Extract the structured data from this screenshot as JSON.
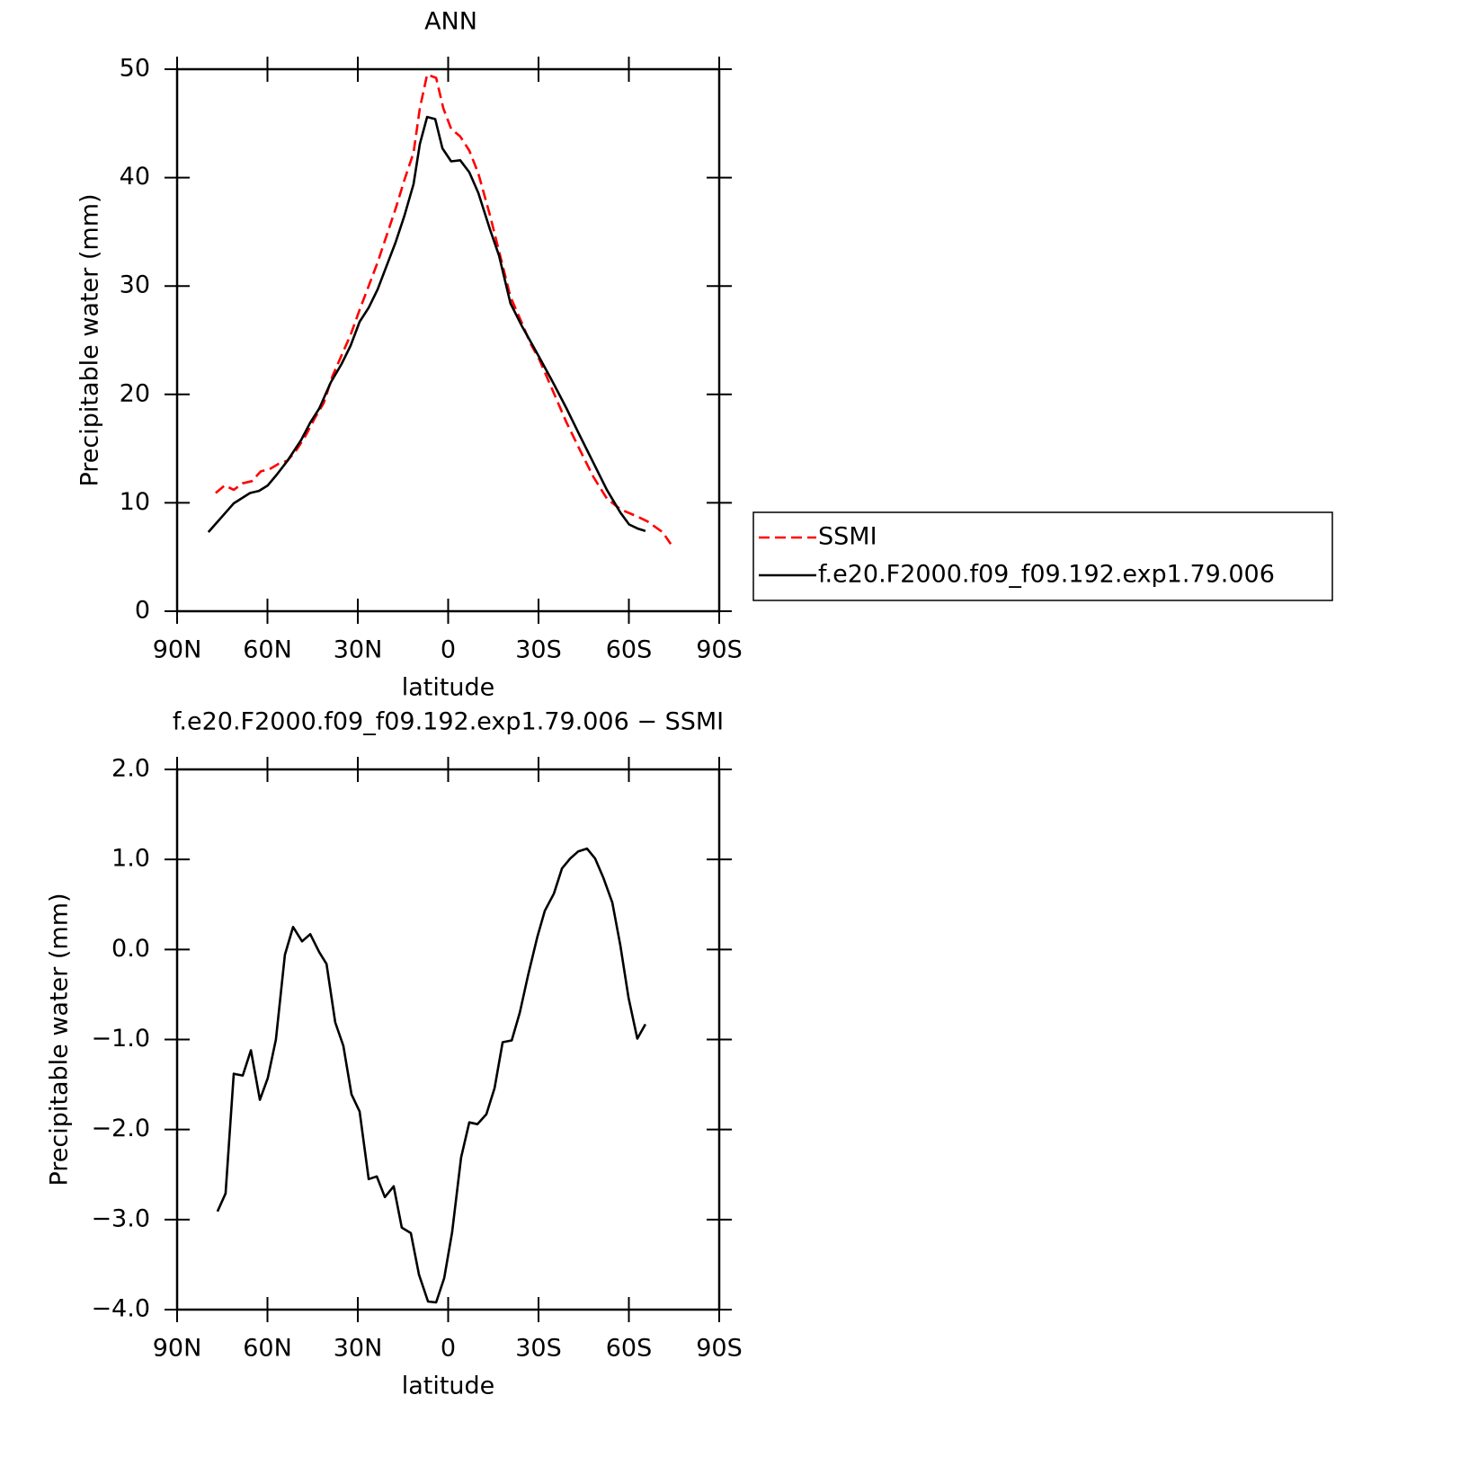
{
  "chart_data": [
    {
      "type": "line",
      "title": "ANN",
      "xlabel": "latitude",
      "ylabel": "Precipitable water (mm)",
      "xlim": [
        90,
        -90
      ],
      "xticks": [
        {
          "value": 90,
          "label": "90N"
        },
        {
          "value": 60,
          "label": "60N"
        },
        {
          "value": 30,
          "label": "30N"
        },
        0,
        {
          "value": -30,
          "label": "30S"
        },
        {
          "value": -60,
          "label": "60S"
        },
        {
          "value": -90,
          "label": "90S"
        }
      ],
      "ylim": [
        0,
        50
      ],
      "yticks": [
        0,
        10,
        20,
        30,
        40,
        50
      ],
      "legend": "right",
      "series": [
        {
          "name": "SSMI",
          "color": "#ff0000",
          "dash": true,
          "x": [
            77.2,
            74.2,
            71.2,
            68.2,
            65.2,
            62.2,
            59.3,
            56.3,
            53.3,
            50.3,
            47.3,
            44.3,
            41.3,
            38.4,
            35.4,
            32.4,
            29.4,
            26.4,
            23.4,
            20.4,
            17.5,
            14.5,
            11.5,
            9.4,
            7.0,
            4.0,
            1.6,
            -1.0,
            -4.0,
            -7.0,
            -10.0,
            -13.9,
            -16.9,
            -20.7,
            -24.3,
            -27.3,
            -30.3,
            -34.8,
            -39.3,
            -43.7,
            -48.2,
            -52.7,
            -57.2,
            -63.1,
            -66.1,
            -71.2,
            -73.9
          ],
          "values": [
            10.9,
            11.6,
            11.2,
            11.8,
            12.0,
            12.9,
            13.1,
            13.6,
            13.9,
            14.9,
            16.2,
            17.8,
            19.2,
            21.7,
            23.6,
            25.5,
            27.8,
            30.0,
            32.2,
            34.7,
            37.1,
            39.8,
            42.3,
            46.4,
            49.5,
            49.2,
            46.4,
            44.5,
            43.8,
            42.5,
            40.4,
            36.5,
            33.2,
            29.0,
            26.7,
            24.7,
            23.2,
            20.3,
            17.4,
            14.9,
            12.4,
            10.4,
            9.4,
            8.7,
            8.3,
            7.3,
            6.2
          ]
        },
        {
          "name": "f.e20.F2000.f09_f09.192.exp1.79.006",
          "color": "#000000",
          "dash": false,
          "x": [
            79.6,
            71.2,
            65.8,
            62.8,
            59.9,
            56.9,
            53.3,
            48.8,
            45.8,
            42.8,
            39.0,
            35.4,
            32.4,
            29.4,
            26.4,
            23.4,
            20.4,
            17.5,
            14.5,
            11.5,
            9.4,
            7.0,
            4.3,
            1.9,
            -1.0,
            -4.0,
            -7.0,
            -10.0,
            -13.9,
            -16.9,
            -20.7,
            -24.3,
            -27.3,
            -30.3,
            -34.8,
            -39.3,
            -43.7,
            -48.2,
            -52.7,
            -57.2,
            -60.1,
            -63.1,
            -65.5
          ],
          "values": [
            7.3,
            9.95,
            10.9,
            11.1,
            11.6,
            12.6,
            13.9,
            15.8,
            17.4,
            18.7,
            21.1,
            22.8,
            24.5,
            26.7,
            28.0,
            29.7,
            31.9,
            34.0,
            36.5,
            39.4,
            43.1,
            45.6,
            45.4,
            42.7,
            41.5,
            41.6,
            40.5,
            38.6,
            35.2,
            32.8,
            28.4,
            26.4,
            24.9,
            23.4,
            21.1,
            18.7,
            16.2,
            13.7,
            11.2,
            9.1,
            8.0,
            7.6,
            7.4
          ]
        }
      ]
    },
    {
      "type": "line",
      "title": "f.e20.F2000.f09_f09.192.exp1.79.006 − SSMI",
      "xlabel": "latitude",
      "ylabel": "Precipitable water (mm)",
      "xlim": [
        90,
        -90
      ],
      "xticks": [
        {
          "value": 90,
          "label": "90N"
        },
        {
          "value": 60,
          "label": "60N"
        },
        {
          "value": 30,
          "label": "30N"
        },
        0,
        {
          "value": -30,
          "label": "30S"
        },
        {
          "value": -60,
          "label": "60S"
        },
        {
          "value": -90,
          "label": "90S"
        }
      ],
      "ylim": [
        -4,
        2
      ],
      "yticks": [
        {
          "value": -4,
          "label": "−4.0"
        },
        {
          "value": -3,
          "label": "−3.0"
        },
        {
          "value": -2,
          "label": "−2.0"
        },
        {
          "value": -1,
          "label": "−1.0"
        },
        {
          "value": 0,
          "label": "0.0"
        },
        {
          "value": 1,
          "label": "1.0"
        },
        {
          "value": 2,
          "label": "2.0"
        }
      ],
      "series": [
        {
          "color": "#000000",
          "dash": false,
          "x": [
            76.6,
            73.9,
            71.2,
            68.2,
            65.5,
            62.5,
            59.9,
            57.2,
            54.2,
            51.5,
            48.5,
            45.8,
            42.8,
            40.4,
            37.5,
            34.8,
            32.1,
            29.4,
            26.4,
            23.7,
            21.0,
            18.1,
            15.4,
            12.4,
            9.7,
            6.7,
            4.0,
            1.3,
            -1.3,
            -4.3,
            -7.0,
            -9.7,
            -12.7,
            -15.4,
            -18.1,
            -21.1,
            -23.8,
            -26.5,
            -29.6,
            -32.1,
            -35.1,
            -37.8,
            -40.5,
            -43.2,
            -46.1,
            -48.8,
            -51.5,
            -54.5,
            -57.2,
            -59.9,
            -62.8,
            -65.5
          ],
          "values": [
            -2.91,
            -2.71,
            -1.38,
            -1.4,
            -1.12,
            -1.67,
            -1.43,
            -1.0,
            -0.06,
            0.25,
            0.09,
            0.17,
            -0.03,
            -0.16,
            -0.81,
            -1.07,
            -1.61,
            -1.8,
            -2.55,
            -2.52,
            -2.75,
            -2.63,
            -3.09,
            -3.15,
            -3.61,
            -3.91,
            -3.92,
            -3.65,
            -3.14,
            -2.31,
            -1.92,
            -1.94,
            -1.83,
            -1.54,
            -1.03,
            -1.01,
            -0.7,
            -0.29,
            0.14,
            0.43,
            0.62,
            0.9,
            1.01,
            1.09,
            1.12,
            1.01,
            0.8,
            0.52,
            0.04,
            -0.54,
            -0.99,
            -0.83
          ]
        }
      ]
    }
  ]
}
